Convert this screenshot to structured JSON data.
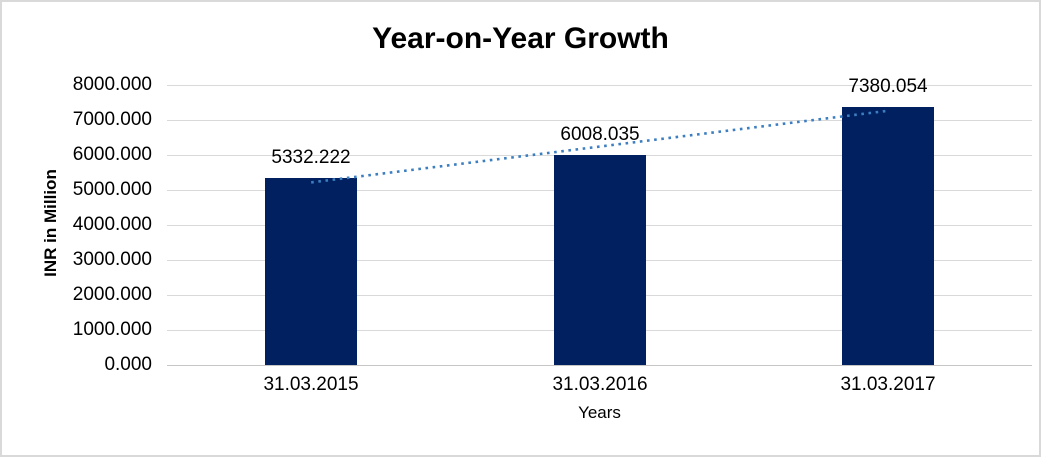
{
  "chart_data": {
    "type": "bar",
    "title": "Year-on-Year Growth",
    "categories": [
      "31.03.2015",
      "31.03.2016",
      "31.03.2017"
    ],
    "values": [
      5332.222,
      6008.035,
      7380.054
    ],
    "data_labels": [
      "5332.222",
      "6008.035",
      "7380.054"
    ],
    "xlabel": "Years",
    "ylabel": "INR in Million",
    "ylim": [
      0,
      8000
    ],
    "ytick_labels": [
      "8000.000",
      "7000.000",
      "6000.000",
      "5000.000",
      "4000.000",
      "3000.000",
      "2000.000",
      "1000.000",
      "0.000"
    ],
    "grid": true,
    "legend": false,
    "bar_color": "#002060",
    "gridline_color": "#d9d9d9",
    "axisline_color": "#c6c6c6",
    "text_color": "#000000",
    "frame_border_color": "#d9d9d9",
    "trendline": {
      "type": "linear",
      "style": "dotted",
      "color": "#3d7ec0"
    }
  }
}
